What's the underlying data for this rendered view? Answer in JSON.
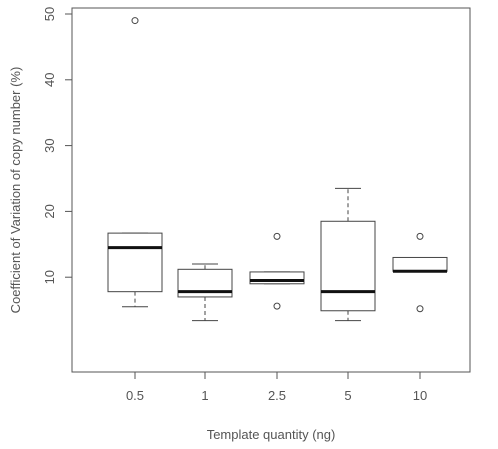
{
  "chart_data": {
    "type": "box",
    "xlabel": "Template quantity (ng)",
    "ylabel": "Coefficient of Variation of copy number (%)",
    "ylim": [
      0,
      50
    ],
    "yticks": [
      10,
      20,
      30,
      40,
      50
    ],
    "categories": [
      "0.5",
      "1",
      "2.5",
      "5",
      "10"
    ],
    "boxes": [
      {
        "category": "0.5",
        "whisker_low": 5.5,
        "q1": 7.8,
        "median": 14.5,
        "q3": 16.7,
        "whisker_high": 16.7,
        "outliers": [
          49
        ]
      },
      {
        "category": "1",
        "whisker_low": 3.4,
        "q1": 7.0,
        "median": 7.8,
        "q3": 11.2,
        "whisker_high": 12.0,
        "outliers": []
      },
      {
        "category": "2.5",
        "whisker_low": 9.0,
        "q1": 9.0,
        "median": 9.5,
        "q3": 10.8,
        "whisker_high": 10.8,
        "outliers": [
          16.2,
          5.6
        ]
      },
      {
        "category": "5",
        "whisker_low": 3.4,
        "q1": 4.9,
        "median": 7.8,
        "q3": 18.5,
        "whisker_high": 23.5,
        "outliers": []
      },
      {
        "category": "10",
        "whisker_low": 10.9,
        "q1": 10.9,
        "median": 10.9,
        "q3": 13.0,
        "whisker_high": 13.0,
        "outliers": [
          16.2,
          5.2
        ]
      }
    ],
    "grid": false,
    "legend": "none"
  }
}
